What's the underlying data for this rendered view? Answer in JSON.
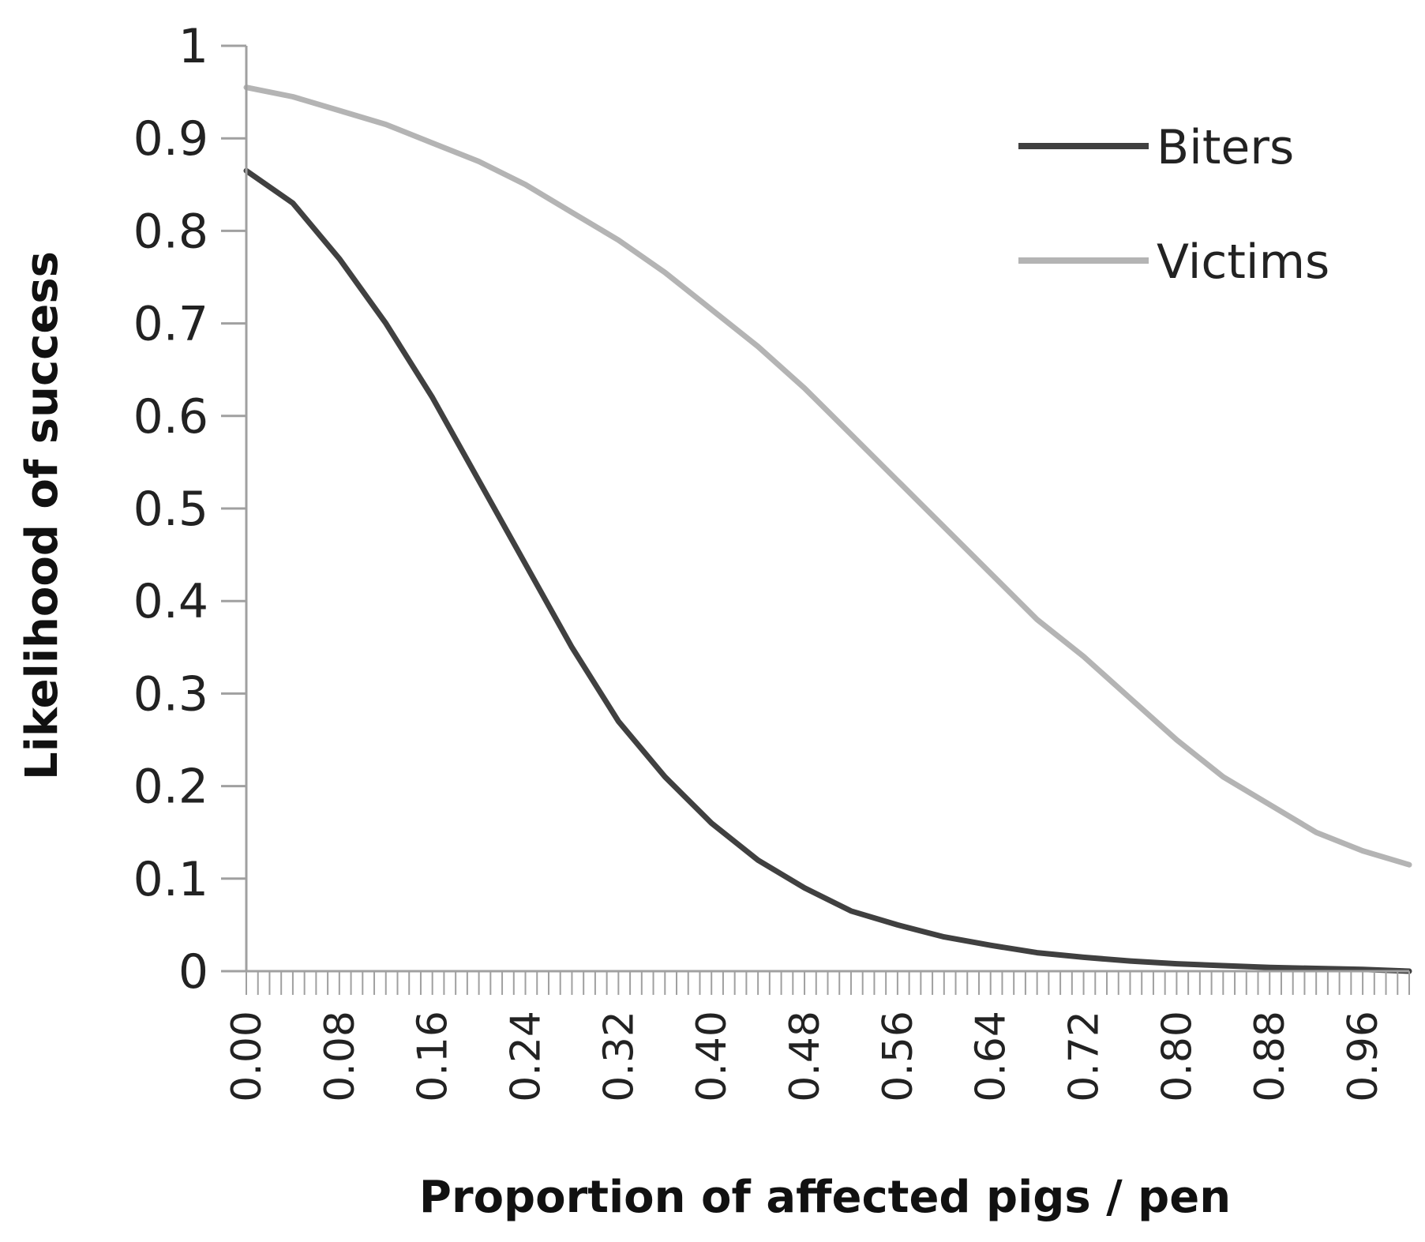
{
  "chart_data": {
    "type": "line",
    "title": "",
    "xlabel": "Proportion  of affected pigs / pen",
    "ylabel": "Likelihood of success",
    "xlim": [
      0,
      1
    ],
    "ylim": [
      0,
      1
    ],
    "x_tick_labels": [
      "0.00",
      "0.08",
      "0.16",
      "0.24",
      "0.32",
      "0.40",
      "0.48",
      "0.56",
      "0.64",
      "0.72",
      "0.80",
      "0.88",
      "0.96"
    ],
    "y_tick_labels": [
      "0",
      "0.1",
      "0.2",
      "0.3",
      "0.4",
      "0.5",
      "0.6",
      "0.7",
      "0.8",
      "0.9",
      "1"
    ],
    "minor_tick_step": 0.01,
    "grid": false,
    "legend_position": "top-right",
    "x": [
      0.0,
      0.04,
      0.08,
      0.12,
      0.16,
      0.2,
      0.24,
      0.28,
      0.32,
      0.36,
      0.4,
      0.44,
      0.48,
      0.52,
      0.56,
      0.6,
      0.64,
      0.68,
      0.72,
      0.76,
      0.8,
      0.84,
      0.88,
      0.92,
      0.96,
      1.0
    ],
    "series": [
      {
        "name": "Biters",
        "color": "#404040",
        "values": [
          0.865,
          0.83,
          0.77,
          0.7,
          0.62,
          0.53,
          0.44,
          0.35,
          0.27,
          0.21,
          0.16,
          0.12,
          0.09,
          0.065,
          0.05,
          0.037,
          0.028,
          0.02,
          0.015,
          0.011,
          0.008,
          0.006,
          0.004,
          0.003,
          0.002,
          0.0
        ]
      },
      {
        "name": "Victims",
        "color": "#b4b4b4",
        "values": [
          0.955,
          0.945,
          0.93,
          0.915,
          0.895,
          0.875,
          0.85,
          0.82,
          0.79,
          0.755,
          0.715,
          0.675,
          0.63,
          0.58,
          0.53,
          0.48,
          0.43,
          0.38,
          0.34,
          0.295,
          0.25,
          0.21,
          0.18,
          0.15,
          0.13,
          0.115
        ]
      }
    ]
  }
}
